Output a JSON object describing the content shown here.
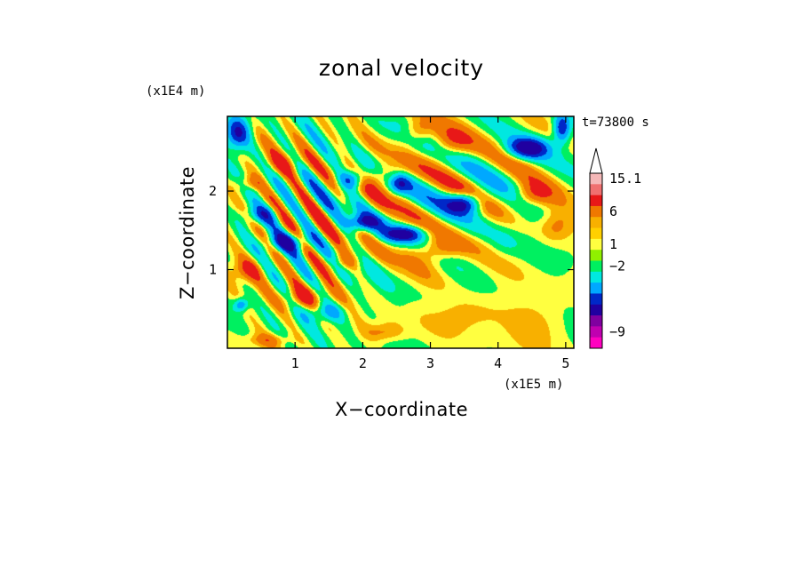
{
  "chart_data": {
    "type": "heatmap",
    "title": "zonal velocity",
    "xlabel": "X−coordinate",
    "ylabel": "Z−coordinate",
    "x_unit": "(x1E5 m)",
    "y_unit": "(x1E4 m)",
    "time_label": "t=73800 s",
    "xlim": [
      0,
      5.12
    ],
    "ylim": [
      0,
      2.95
    ],
    "x_ticks": [
      1,
      2,
      3,
      4,
      5
    ],
    "y_ticks": [
      1,
      2
    ],
    "x_tick_labels": [
      "1",
      "2",
      "3",
      "4",
      "5"
    ],
    "y_tick_labels": [
      "1",
      "2"
    ],
    "colorbar": {
      "labels": [
        "15.1",
        "6",
        "1",
        "−2",
        "−9"
      ],
      "label_values": [
        15.1,
        6,
        1,
        -2,
        -9
      ],
      "colors": [
        "#f5b8b8",
        "#f07070",
        "#e81818",
        "#f07800",
        "#f8b000",
        "#ffd000",
        "#ffff40",
        "#90f000",
        "#00f060",
        "#00e8e0",
        "#00a8ff",
        "#0028c8",
        "#2000a0",
        "#8000a0",
        "#c000b0",
        "#ff00c0"
      ],
      "extend_top": true
    },
    "palette": {
      "pos_strong": "#e81818",
      "pos_mid": "#f07800",
      "pos_weak": "#f8b000",
      "near_zero_pos": "#ffff40",
      "near_zero": "#00f060",
      "neg_weak": "#00e8e0",
      "neg_mid": "#00a8ff",
      "neg_strong": "#0028c8",
      "neg_extreme": "#2000a0"
    },
    "field_features": [
      {
        "type": "blob",
        "x": 3.6,
        "y": 0.45,
        "sx": 0.55,
        "sy": 0.25,
        "amp": 1.5
      },
      {
        "type": "blob",
        "x": 4.6,
        "y": 0.35,
        "sx": 0.5,
        "sy": 0.3,
        "amp": 1.3
      },
      {
        "type": "blob",
        "x": 2.9,
        "y": 1.0,
        "sx": 0.35,
        "sy": 0.35,
        "amp": 0.6
      },
      {
        "type": "blob",
        "x": 0.15,
        "y": 2.75,
        "sx": 0.18,
        "sy": 0.2,
        "amp": -7
      },
      {
        "type": "blob",
        "x": 0.8,
        "y": 2.35,
        "sx": 0.3,
        "sy": 0.15,
        "amp": 2.6
      },
      {
        "type": "blob",
        "x": 0.3,
        "y": 2.1,
        "sx": 0.2,
        "sy": 0.1,
        "amp": 2.5
      },
      {
        "type": "blob",
        "x": 0.5,
        "y": 1.7,
        "sx": 0.25,
        "sy": 0.12,
        "amp": -4
      },
      {
        "type": "blob",
        "x": 0.9,
        "y": 1.35,
        "sx": 0.3,
        "sy": 0.12,
        "amp": -6
      },
      {
        "type": "blob",
        "x": 0.3,
        "y": 1.0,
        "sx": 0.25,
        "sy": 0.15,
        "amp": 3
      },
      {
        "type": "blob",
        "x": 1.1,
        "y": 0.65,
        "sx": 0.3,
        "sy": 0.15,
        "amp": 3.5
      },
      {
        "type": "blob",
        "x": 0.2,
        "y": 0.55,
        "sx": 0.1,
        "sy": 0.08,
        "amp": -5
      },
      {
        "type": "blob",
        "x": 2.0,
        "y": 1.6,
        "sx": 0.25,
        "sy": 0.1,
        "amp": -6
      },
      {
        "type": "blob",
        "x": 1.85,
        "y": 2.15,
        "sx": 0.2,
        "sy": 0.12,
        "amp": -6
      },
      {
        "type": "blob",
        "x": 2.3,
        "y": 2.2,
        "sx": 0.35,
        "sy": 0.15,
        "amp": 3
      },
      {
        "type": "blob",
        "x": 2.55,
        "y": 2.1,
        "sx": 0.15,
        "sy": 0.12,
        "amp": -5
      },
      {
        "type": "blob",
        "x": 2.6,
        "y": 1.45,
        "sx": 0.3,
        "sy": 0.1,
        "amp": -7
      },
      {
        "type": "blob",
        "x": 3.5,
        "y": 1.85,
        "sx": 0.25,
        "sy": 0.13,
        "amp": -8
      },
      {
        "type": "blob",
        "x": 3.1,
        "y": 1.25,
        "sx": 0.35,
        "sy": 0.15,
        "amp": 3.2
      },
      {
        "type": "blob",
        "x": 3.3,
        "y": 2.6,
        "sx": 0.3,
        "sy": 0.2,
        "amp": 3.2
      },
      {
        "type": "blob",
        "x": 2.8,
        "y": 2.75,
        "sx": 0.2,
        "sy": 0.15,
        "amp": 3
      },
      {
        "type": "blob",
        "x": 4.45,
        "y": 2.55,
        "sx": 0.3,
        "sy": 0.13,
        "amp": -8
      },
      {
        "type": "blob",
        "x": 4.5,
        "y": 1.95,
        "sx": 0.3,
        "sy": 0.15,
        "amp": 3.4
      },
      {
        "type": "blob",
        "x": 4.85,
        "y": 1.55,
        "sx": 0.25,
        "sy": 0.2,
        "amp": 2.4
      },
      {
        "type": "blob",
        "x": 4.95,
        "y": 2.8,
        "sx": 0.12,
        "sy": 0.18,
        "amp": -7
      },
      {
        "type": "blob",
        "x": 4.1,
        "y": 1.35,
        "sx": 0.2,
        "sy": 0.2,
        "amp": -0.8
      },
      {
        "type": "blob",
        "x": 1.7,
        "y": 1.1,
        "sx": 0.25,
        "sy": 0.12,
        "amp": 2.8
      },
      {
        "type": "blob",
        "x": 1.45,
        "y": 0.45,
        "sx": 0.3,
        "sy": 0.12,
        "amp": -3.5
      },
      {
        "type": "blob",
        "x": 2.3,
        "y": 0.2,
        "sx": 0.3,
        "sy": 0.12,
        "amp": 2.5
      },
      {
        "type": "blob",
        "x": 0.6,
        "y": 0.1,
        "sx": 0.35,
        "sy": 0.08,
        "amp": 2.2
      },
      {
        "type": "wave",
        "x": 1.1,
        "y": 1.6,
        "sx": 0.9,
        "sy": 1.3,
        "amp": 5,
        "kx": 12,
        "kz": 10
      },
      {
        "type": "wave",
        "x": 2.9,
        "y": 1.9,
        "sx": 1.4,
        "sy": 0.9,
        "amp": 4.5,
        "kx": 4.2,
        "kz": 9
      },
      {
        "type": "wave",
        "x": 4.3,
        "y": 2.2,
        "sx": 0.8,
        "sy": 0.7,
        "amp": 3,
        "kx": 4,
        "kz": 7
      }
    ]
  }
}
